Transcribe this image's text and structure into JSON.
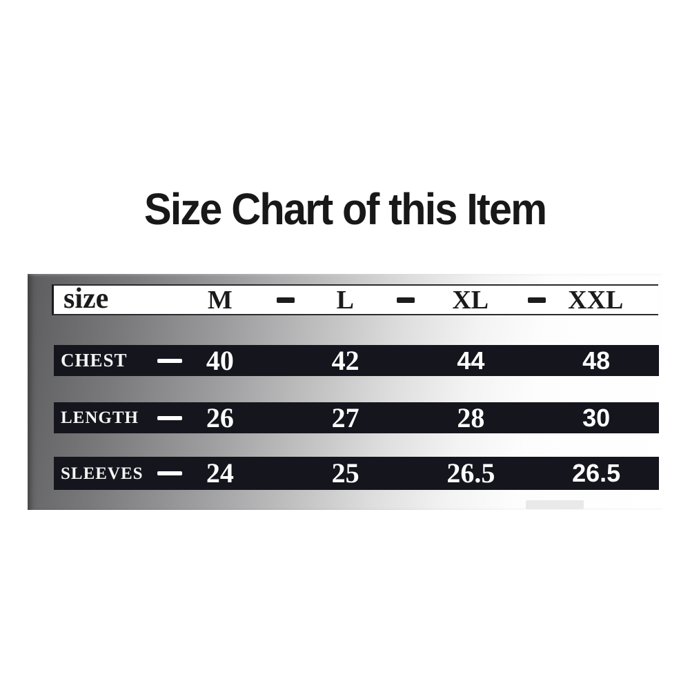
{
  "title": "Size Chart of this Item",
  "size_chart": {
    "header": {
      "label": "size",
      "separator": "-",
      "sizes": [
        "M",
        "L",
        "XL",
        "XXL"
      ]
    },
    "rows": [
      {
        "label": "CHEST",
        "dash": "—",
        "values": [
          "40",
          "42",
          "44",
          "48"
        ]
      },
      {
        "label": "LENGTH",
        "dash": "—",
        "values": [
          "26",
          "27",
          "28",
          "30"
        ]
      },
      {
        "label": "SLEEVES",
        "dash": "—",
        "values": [
          "24",
          "25",
          "26.5",
          "26.5"
        ]
      }
    ]
  },
  "chart_data": {
    "type": "table",
    "title": "Size Chart of this Item",
    "columns": [
      "size",
      "M",
      "L",
      "XL",
      "XXL"
    ],
    "rows": [
      [
        "CHEST",
        40,
        42,
        44,
        48
      ],
      [
        "LENGTH",
        26,
        27,
        28,
        30
      ],
      [
        "SLEEVES",
        24,
        25,
        26.5,
        26.5
      ]
    ]
  }
}
